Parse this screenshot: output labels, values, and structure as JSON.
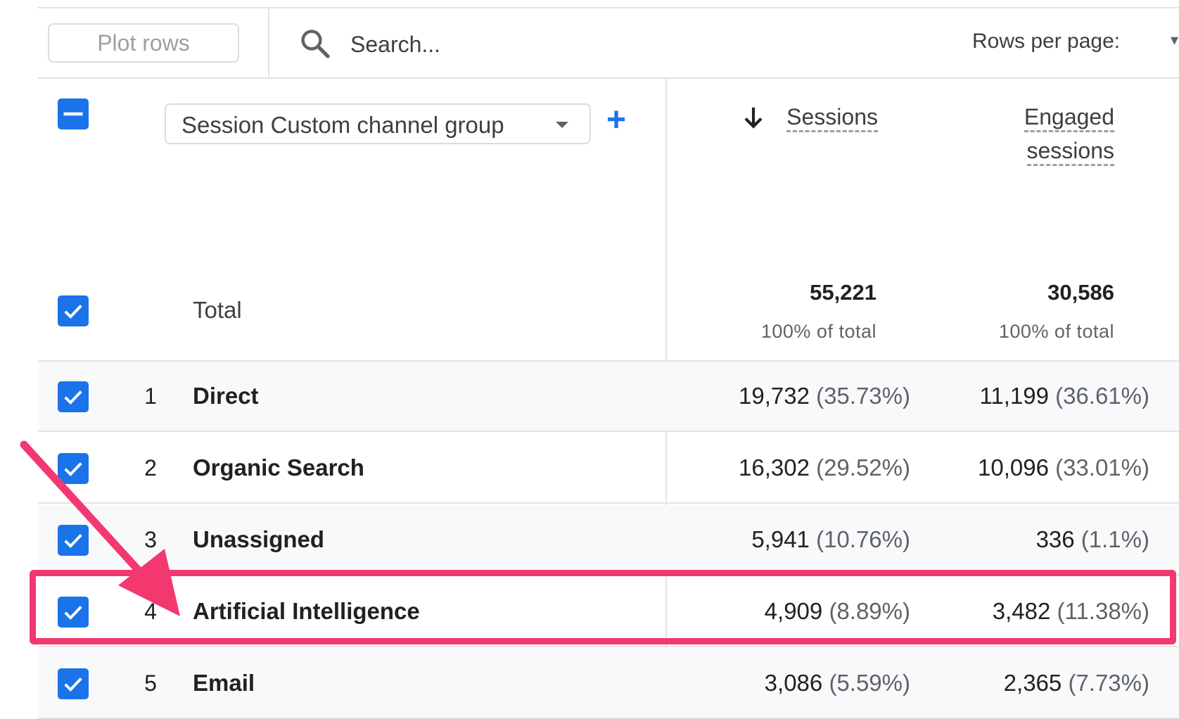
{
  "toolbar": {
    "plot_rows_label": "Plot rows",
    "search_placeholder": "Search...",
    "rows_per_page_label": "Rows per page:",
    "rows_per_page_value": "▾"
  },
  "dimension": {
    "label": "Session Custom channel group",
    "add_icon": "+"
  },
  "metrics": {
    "sessions": {
      "label": "Sessions",
      "sorted": "descending"
    },
    "engaged_sessions": {
      "label_line1": "Engaged",
      "label_line2": "sessions"
    }
  },
  "total": {
    "label": "Total",
    "sessions": "55,221",
    "sessions_pct": "100% of total",
    "engaged": "30,586",
    "engaged_pct": "100% of total"
  },
  "rows": [
    {
      "index": "1",
      "name": "Direct",
      "sessions": "19,732",
      "sessions_pct": "(35.73%)",
      "engaged": "11,199",
      "engaged_pct": "(36.61%)"
    },
    {
      "index": "2",
      "name": "Organic Search",
      "sessions": "16,302",
      "sessions_pct": "(29.52%)",
      "engaged": "10,096",
      "engaged_pct": "(33.01%)"
    },
    {
      "index": "3",
      "name": "Unassigned",
      "sessions": "5,941",
      "sessions_pct": "(10.76%)",
      "engaged": "336",
      "engaged_pct": "(1.1%)"
    },
    {
      "index": "4",
      "name": "Artificial Intelligence",
      "sessions": "4,909",
      "sessions_pct": "(8.89%)",
      "engaged": "3,482",
      "engaged_pct": "(11.38%)"
    },
    {
      "index": "5",
      "name": "Email",
      "sessions": "3,086",
      "sessions_pct": "(5.59%)",
      "engaged": "2,365",
      "engaged_pct": "(7.73%)"
    }
  ],
  "colors": {
    "accent": "#1a73e8",
    "highlight": "#f2386f",
    "row_shade": "#f8f9fa",
    "divider": "#e3e3e3"
  },
  "icons": {
    "search": "search-icon",
    "sort": "arrow-down-icon",
    "checkbox": "check-icon",
    "select_all": "minus-icon",
    "dropdown": "caret-down-icon",
    "add": "plus-icon"
  }
}
